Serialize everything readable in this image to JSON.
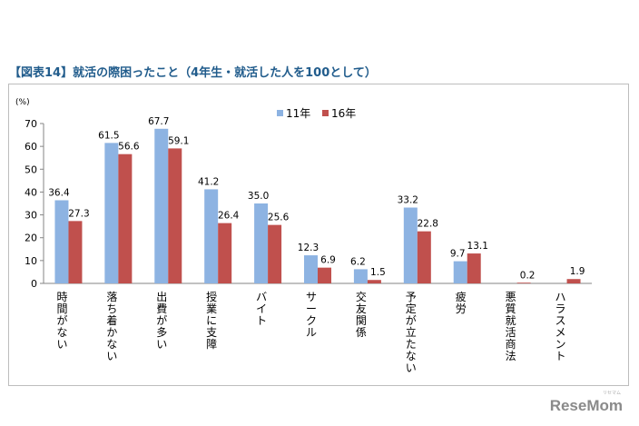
{
  "title": "【図表14】就活の際困ったこと（4年生・就活した人を100として）",
  "watermark": "ReseMom",
  "watermark_sub": "リセマム",
  "chart_data": {
    "type": "bar",
    "title": "【図表14】就活の際困ったこと（4年生・就活した人を100として）",
    "ylabel": "(%)",
    "ylim": [
      0,
      70
    ],
    "yticks": [
      0,
      10,
      20,
      30,
      40,
      50,
      60,
      70
    ],
    "grid": false,
    "legend_position": "top-center",
    "categories": [
      "時間がない",
      "落ち着かない",
      "出費が多い",
      "授業に支障",
      "バイト",
      "サークル",
      "交友関係",
      "予定が立たない",
      "疲労",
      "悪質就活商法",
      "ハラスメント"
    ],
    "series": [
      {
        "name": "11年",
        "color": "#8db3e2",
        "values": [
          36.4,
          61.5,
          67.7,
          41.2,
          35.0,
          12.3,
          6.2,
          33.2,
          9.7,
          null,
          null
        ],
        "labels": [
          "36.4",
          "61.5",
          "67.7",
          "41.2",
          "35.0",
          "12.3",
          "6.2",
          "33.2",
          "9.7",
          "",
          ""
        ]
      },
      {
        "name": "16年",
        "color": "#c0504d",
        "values": [
          27.3,
          56.6,
          59.1,
          26.4,
          25.6,
          6.9,
          1.5,
          22.8,
          13.1,
          0.2,
          1.9
        ],
        "labels": [
          "27.3",
          "56.6",
          "59.1",
          "26.4",
          "25.6",
          "6.9",
          "1.5",
          "22.8",
          "13.1",
          "0.2",
          "1.9"
        ]
      }
    ]
  }
}
